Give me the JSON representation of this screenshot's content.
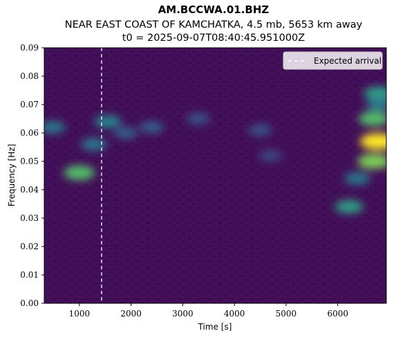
{
  "chart_data": {
    "type": "heatmap",
    "title": "AM.BCCWA.01.BHZ",
    "subtitle": "NEAR EAST COAST OF KAMCHATKA, 4.5 mb, 5653 km away",
    "subtitle2": "t0 = 2025-09-07T08:40:45.951000Z",
    "xlabel": "Time [s]",
    "ylabel": "Frequency [Hz]",
    "xlim": [
      320,
      6940
    ],
    "ylim": [
      0.0,
      0.09
    ],
    "xticks": [
      1000,
      2000,
      3000,
      4000,
      5000,
      6000
    ],
    "xtick_labels": [
      "1000",
      "2000",
      "3000",
      "4000",
      "5000",
      "6000"
    ],
    "yticks": [
      0.0,
      0.01,
      0.02,
      0.03,
      0.04,
      0.05,
      0.06,
      0.07,
      0.08,
      0.09
    ],
    "ytick_labels": [
      "0.00",
      "0.01",
      "0.02",
      "0.03",
      "0.04",
      "0.05",
      "0.06",
      "0.07",
      "0.08",
      "0.09"
    ],
    "colormap": "viridis",
    "expected_arrival": {
      "x": 1430,
      "label": "Expected arrival",
      "color": "#ffffff",
      "style": "dashed"
    },
    "legend": {
      "placement": "top-right",
      "entries": [
        "Expected arrival"
      ]
    },
    "grid": false,
    "blobs": [
      {
        "t": 1000,
        "f": 0.046,
        "value": 0.7
      },
      {
        "t": 480,
        "f": 0.062,
        "value": 0.4
      },
      {
        "t": 1280,
        "f": 0.056,
        "value": 0.4
      },
      {
        "t": 1550,
        "f": 0.064,
        "value": 0.45
      },
      {
        "t": 1900,
        "f": 0.06,
        "value": 0.3
      },
      {
        "t": 2400,
        "f": 0.062,
        "value": 0.3
      },
      {
        "t": 3300,
        "f": 0.065,
        "value": 0.25
      },
      {
        "t": 4500,
        "f": 0.061,
        "value": 0.25
      },
      {
        "t": 4700,
        "f": 0.052,
        "value": 0.22
      },
      {
        "t": 6220,
        "f": 0.034,
        "value": 0.55
      },
      {
        "t": 6380,
        "f": 0.044,
        "value": 0.4
      },
      {
        "t": 6700,
        "f": 0.05,
        "value": 0.8
      },
      {
        "t": 6780,
        "f": 0.057,
        "value": 1.0
      },
      {
        "t": 6700,
        "f": 0.065,
        "value": 0.7
      },
      {
        "t": 6780,
        "f": 0.074,
        "value": 0.55
      },
      {
        "t": 6800,
        "f": 0.07,
        "value": 0.4
      }
    ]
  }
}
